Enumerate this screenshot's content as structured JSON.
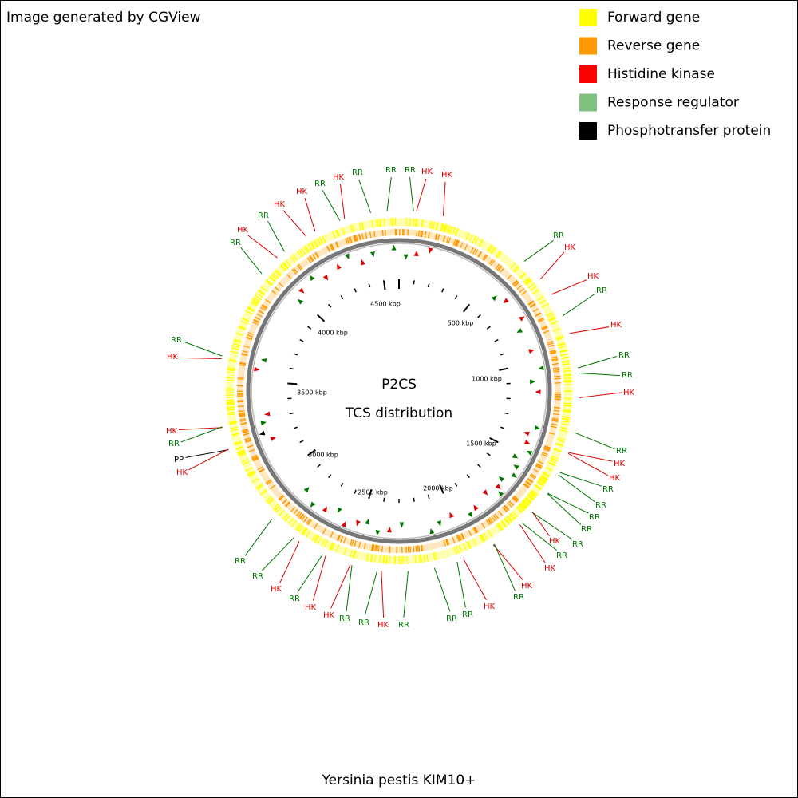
{
  "header": {
    "credit": "Image generated by CGView"
  },
  "legend": [
    {
      "label": "Forward gene",
      "color": "#ffff00"
    },
    {
      "label": "Reverse gene",
      "color": "#ff9900"
    },
    {
      "label": "Histidine kinase",
      "color": "#ff0000"
    },
    {
      "label": "Response regulator",
      "color": "#80c080"
    },
    {
      "label": "Phosphotransfer protein",
      "color": "#000000"
    }
  ],
  "center": {
    "title": "P2CS",
    "subtitle": "TCS distribution"
  },
  "scale_labels": [
    "500 kbp",
    "1000 kbp",
    "1500 kbp",
    "2000 kbp",
    "2500 kbp",
    "3000 kbp",
    "3500 kbp",
    "4000 kbp",
    "4500 kbp"
  ],
  "features": [
    {
      "label": "RR",
      "color": "#007700"
    },
    {
      "label": "HK",
      "color": "#dd0000"
    },
    {
      "label": "RR",
      "color": "#007700"
    },
    {
      "label": "HK",
      "color": "#dd0000"
    },
    {
      "label": "HK",
      "color": "#dd0000"
    },
    {
      "label": "RR",
      "color": "#007700"
    },
    {
      "label": "HK",
      "color": "#dd0000"
    },
    {
      "label": "RR",
      "color": "#007700"
    },
    {
      "label": "RR",
      "color": "#007700"
    },
    {
      "label": "RR",
      "color": "#007700"
    },
    {
      "label": "HK",
      "color": "#dd0000"
    },
    {
      "label": "HK",
      "color": "#dd0000"
    },
    {
      "label": "RR",
      "color": "#007700"
    },
    {
      "label": "HK",
      "color": "#dd0000"
    },
    {
      "label": "HK",
      "color": "#dd0000"
    },
    {
      "label": "RR",
      "color": "#007700"
    },
    {
      "label": "HK",
      "color": "#dd0000"
    },
    {
      "label": "RR",
      "color": "#007700"
    },
    {
      "label": "RR",
      "color": "#007700"
    },
    {
      "label": "HK",
      "color": "#dd0000"
    },
    {
      "label": "RR",
      "color": "#007700"
    },
    {
      "label": "HK",
      "color": "#dd0000"
    },
    {
      "label": "HK",
      "color": "#dd0000"
    },
    {
      "label": "RR",
      "color": "#007700"
    },
    {
      "label": "RR",
      "color": "#007700"
    },
    {
      "label": "RR",
      "color": "#007700"
    },
    {
      "label": "RR",
      "color": "#007700"
    },
    {
      "label": "RR",
      "color": "#007700"
    },
    {
      "label": "HK",
      "color": "#dd0000"
    },
    {
      "label": "RR",
      "color": "#007700"
    },
    {
      "label": "HK",
      "color": "#dd0000"
    },
    {
      "label": "HK",
      "color": "#dd0000"
    },
    {
      "label": "RR",
      "color": "#007700"
    },
    {
      "label": "HK",
      "color": "#dd0000"
    },
    {
      "label": "RR",
      "color": "#007700"
    },
    {
      "label": "RR",
      "color": "#007700"
    },
    {
      "label": "RR",
      "color": "#007700"
    },
    {
      "label": "HK",
      "color": "#dd0000"
    },
    {
      "label": "RR",
      "color": "#007700"
    },
    {
      "label": "RR",
      "color": "#007700"
    },
    {
      "label": "HK",
      "color": "#dd0000"
    },
    {
      "label": "HK",
      "color": "#dd0000"
    },
    {
      "label": "RR",
      "color": "#007700"
    },
    {
      "label": "HK",
      "color": "#dd0000"
    },
    {
      "label": "RR",
      "color": "#007700"
    },
    {
      "label": "RR",
      "color": "#007700"
    },
    {
      "label": "RR",
      "color": "#007700"
    },
    {
      "label": "HK",
      "color": "#dd0000"
    },
    {
      "label": "HK",
      "color": "#dd0000"
    },
    {
      "label": "RR",
      "color": "#007700"
    },
    {
      "label": "PP",
      "color": "#000000"
    },
    {
      "label": "HK",
      "color": "#dd0000"
    }
  ],
  "caption": "Yersinia pestis KIM10+"
}
